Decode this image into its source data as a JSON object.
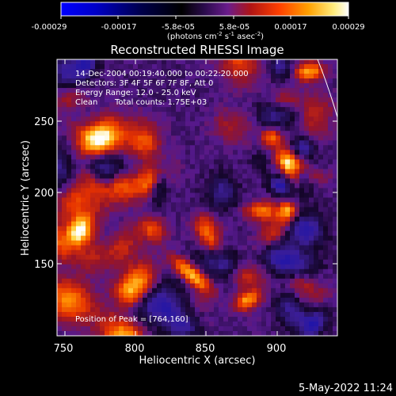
{
  "colorbar": {
    "tick_labels": [
      "-0.00029",
      "-0.00017",
      "-5.8e-05",
      "5.8e-05",
      "0.00017",
      "0.00029"
    ],
    "unit_prefix": "(photons cm",
    "unit_exp1": "-2",
    "unit_mid": " s",
    "unit_exp2": "-1",
    "unit_mid2": " asec",
    "unit_exp3": "-2",
    "unit_suffix": ")"
  },
  "chart_data": {
    "type": "heatmap",
    "title": "Reconstructed RHESSI Image",
    "xlabel": "Heliocentric X (arcsec)",
    "ylabel": "Heliocentric Y (arcsec)",
    "x_ticks": [
      "750",
      "800",
      "850",
      "900"
    ],
    "y_ticks": [
      "150",
      "200",
      "250"
    ],
    "xlim": [
      750,
      937
    ],
    "ylim": [
      100,
      287
    ],
    "colorbar_range": [
      -0.00029,
      0.00029
    ],
    "peak": [
      764,
      160
    ]
  },
  "annotations": {
    "time_range": "14-Dec-2004 00:19:40.000 to 00:22:20.000",
    "detectors": "Detectors: 3F 4F 5F 6F 7F 8F, Att 0",
    "energy": "Energy Range: 12.0 - 25.0 keV",
    "clean": "Clean",
    "total_counts": "Total counts: 1.75E+03",
    "peak_position": "Position of Peak = [764,160]"
  },
  "footer": {
    "date": "5-May-2022 11:24"
  }
}
